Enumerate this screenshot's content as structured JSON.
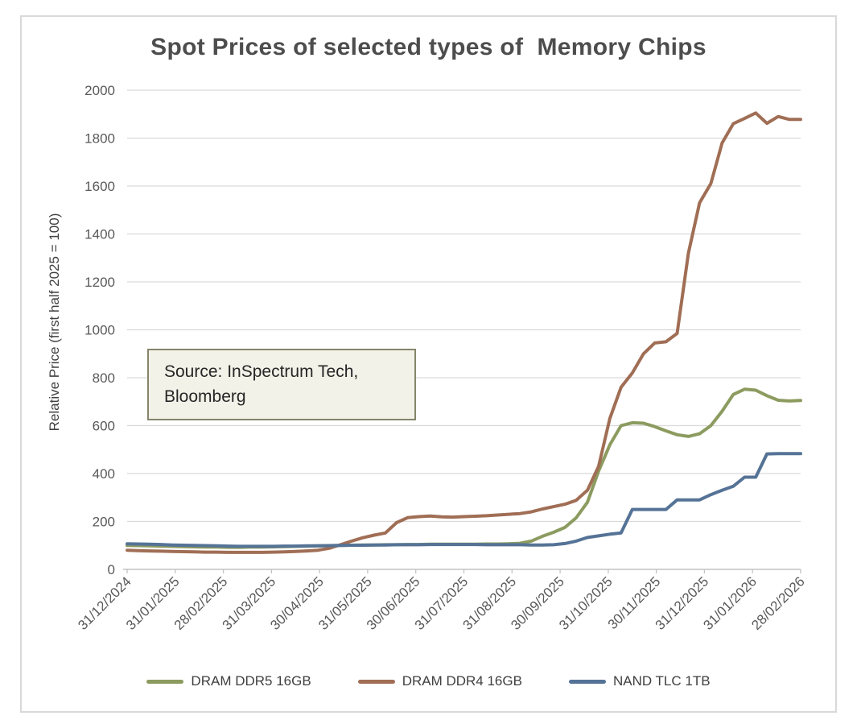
{
  "chart_data": {
    "type": "line",
    "title": "Spot Prices of selected types of  Memory Chips",
    "ylabel": "Relative Price (first half 2025 = 100)",
    "xlabel": "",
    "ylim": [
      0,
      2000
    ],
    "y_ticks": [
      0,
      200,
      400,
      600,
      800,
      1000,
      1200,
      1400,
      1600,
      1800,
      2000
    ],
    "x_labels": [
      "31/12/2024",
      "31/01/2025",
      "28/02/2025",
      "31/03/2025",
      "30/04/2025",
      "31/05/2025",
      "30/06/2025",
      "31/07/2025",
      "31/08/2025",
      "30/09/2025",
      "31/10/2025",
      "30/11/2025",
      "31/12/2025",
      "31/01/2026",
      "28/02/2026"
    ],
    "x_label_angle": -45,
    "grid": "horizontal",
    "legend_position": "bottom",
    "source_note": [
      "Source: InSpectrum Tech,",
      "Bloomberg"
    ],
    "colors": {
      "grid": "#d9d9d9",
      "axis": "#c3c3c3",
      "tick_text": "#595959",
      "title_text": "#4d4d4d",
      "source_bg": "#f2f2e8",
      "source_border": "#85856b"
    },
    "series": [
      {
        "id": "dram-ddr5-16gb",
        "name": "DRAM DDR5 16GB",
        "color": "#8c9b5f",
        "sampling": "weekly",
        "values": [
          100,
          99,
          98,
          97,
          96,
          95,
          94,
          93,
          93,
          92,
          92,
          93,
          93,
          94,
          95,
          96,
          97,
          98,
          99,
          100,
          101,
          102,
          102,
          103,
          103,
          104,
          104,
          105,
          105,
          105,
          105,
          105,
          106,
          106,
          107,
          109,
          118,
          138,
          155,
          175,
          215,
          280,
          410,
          520,
          600,
          612,
          610,
          596,
          578,
          562,
          555,
          566,
          600,
          660,
          730,
          752,
          748,
          725,
          706,
          703,
          705
        ]
      },
      {
        "id": "dram-ddr4-16gb",
        "name": "DRAM DDR4 16GB",
        "color": "#a06e55",
        "sampling": "weekly",
        "values": [
          80,
          78,
          77,
          76,
          75,
          74,
          73,
          72,
          72,
          71,
          71,
          71,
          71,
          72,
          73,
          75,
          77,
          80,
          88,
          103,
          118,
          132,
          143,
          152,
          195,
          216,
          220,
          223,
          219,
          218,
          220,
          222,
          224,
          227,
          230,
          233,
          240,
          252,
          262,
          272,
          288,
          330,
          430,
          630,
          760,
          820,
          900,
          945,
          950,
          985,
          1320,
          1530,
          1610,
          1780,
          1860,
          1882,
          1905,
          1862,
          1890,
          1878,
          1878
        ]
      },
      {
        "id": "nand-tlc-1tb",
        "name": "NAND TLC 1TB",
        "color": "#557396",
        "sampling": "weekly",
        "values": [
          107,
          106,
          105,
          104,
          102,
          101,
          100,
          99,
          98,
          97,
          96,
          96,
          96,
          96,
          97,
          97,
          98,
          98,
          99,
          100,
          101,
          101,
          102,
          102,
          103,
          103,
          103,
          104,
          104,
          104,
          104,
          104,
          103,
          103,
          103,
          103,
          102,
          102,
          103,
          108,
          118,
          133,
          140,
          147,
          152,
          250,
          250,
          250,
          250,
          290,
          290,
          290,
          312,
          330,
          347,
          385,
          385,
          482,
          483,
          483,
          483
        ]
      }
    ]
  }
}
